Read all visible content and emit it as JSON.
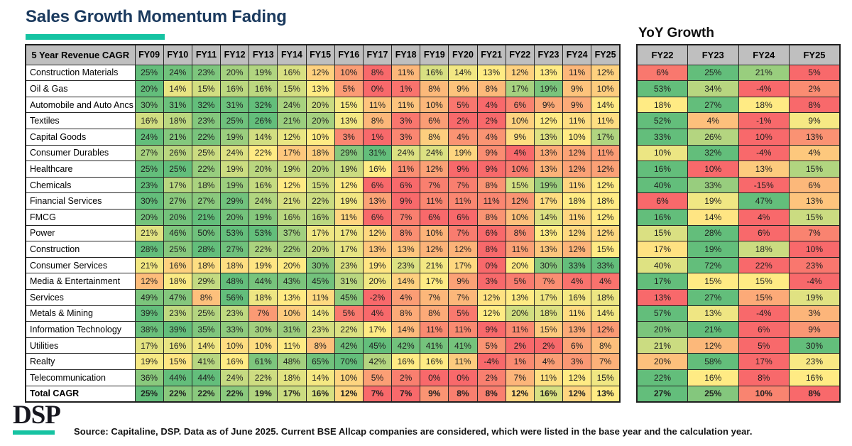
{
  "title": "Sales Growth Momentum Fading",
  "yoy_title": "YoY Growth",
  "colors": {
    "accent_teal": "#16c3a2",
    "title_navy": "#1b3a5e",
    "header_gray": "#bfbfbf",
    "scale_low_red": "#F8696B",
    "scale_mid_yellow": "#FFEB84",
    "scale_high_green": "#63BE7B"
  },
  "chart_data": {
    "type": "heatmap",
    "unit": "%",
    "corner_label": "5 Year Revenue CAGR",
    "cagr_columns": [
      "FY09",
      "FY10",
      "FY11",
      "FY12",
      "FY13",
      "FY14",
      "FY15",
      "FY16",
      "FY17",
      "FY18",
      "FY19",
      "FY20",
      "FY21",
      "FY22",
      "FY23",
      "FY24",
      "FY25"
    ],
    "yoy_columns": [
      "FY22",
      "FY23",
      "FY24",
      "FY25"
    ],
    "color_scale_rule": "per-row 3-color scale: min=red, median=yellow, max=green, applied separately to CAGR table and YoY table",
    "rows": [
      {
        "label": "Construction Materials",
        "cagr": [
          25,
          24,
          23,
          20,
          19,
          16,
          12,
          10,
          8,
          11,
          16,
          14,
          13,
          12,
          13,
          11,
          12
        ],
        "yoy": [
          6,
          25,
          21,
          5
        ],
        "bold": false
      },
      {
        "label": "Oil & Gas",
        "cagr": [
          20,
          14,
          15,
          16,
          16,
          15,
          13,
          5,
          0,
          1,
          8,
          9,
          8,
          17,
          19,
          9,
          10
        ],
        "yoy": [
          53,
          34,
          -4,
          2
        ],
        "bold": false
      },
      {
        "label": "Automobile and Auto Ancs",
        "cagr": [
          30,
          31,
          32,
          31,
          32,
          24,
          20,
          15,
          11,
          11,
          10,
          5,
          4,
          6,
          9,
          9,
          14
        ],
        "yoy": [
          18,
          27,
          18,
          8
        ],
        "bold": false
      },
      {
        "label": "Textiles",
        "cagr": [
          16,
          18,
          23,
          25,
          26,
          21,
          20,
          13,
          8,
          3,
          6,
          2,
          2,
          10,
          12,
          11,
          11
        ],
        "yoy": [
          52,
          4,
          -1,
          9
        ],
        "bold": false
      },
      {
        "label": "Capital Goods",
        "cagr": [
          24,
          21,
          22,
          19,
          14,
          12,
          10,
          3,
          1,
          3,
          8,
          4,
          4,
          9,
          13,
          10,
          17
        ],
        "yoy": [
          33,
          26,
          10,
          13
        ],
        "bold": false
      },
      {
        "label": "Consumer Durables",
        "cagr": [
          27,
          26,
          25,
          24,
          22,
          17,
          18,
          29,
          31,
          24,
          24,
          19,
          9,
          4,
          13,
          12,
          11
        ],
        "yoy": [
          10,
          32,
          -4,
          4
        ],
        "bold": false
      },
      {
        "label": "Healthcare",
        "cagr": [
          25,
          25,
          22,
          19,
          20,
          19,
          20,
          19,
          16,
          11,
          12,
          9,
          9,
          10,
          13,
          12,
          12
        ],
        "yoy": [
          16,
          10,
          13,
          15
        ],
        "bold": false
      },
      {
        "label": "Chemicals",
        "cagr": [
          23,
          17,
          18,
          19,
          16,
          12,
          15,
          12,
          6,
          6,
          7,
          7,
          8,
          15,
          19,
          11,
          12
        ],
        "yoy": [
          40,
          33,
          -15,
          6
        ],
        "bold": false
      },
      {
        "label": "Financial Services",
        "cagr": [
          30,
          27,
          27,
          29,
          24,
          21,
          22,
          19,
          13,
          9,
          11,
          11,
          11,
          12,
          17,
          18,
          18
        ],
        "yoy": [
          6,
          19,
          47,
          13
        ],
        "bold": false
      },
      {
        "label": "FMCG",
        "cagr": [
          20,
          20,
          21,
          20,
          19,
          16,
          16,
          11,
          6,
          7,
          6,
          6,
          8,
          10,
          14,
          11,
          12
        ],
        "yoy": [
          16,
          14,
          4,
          15
        ],
        "bold": false
      },
      {
        "label": "Power",
        "cagr": [
          21,
          46,
          50,
          53,
          53,
          37,
          17,
          17,
          12,
          8,
          10,
          7,
          6,
          8,
          13,
          12,
          12
        ],
        "yoy": [
          15,
          28,
          6,
          7
        ],
        "bold": false
      },
      {
        "label": "Construction",
        "cagr": [
          28,
          25,
          28,
          27,
          22,
          22,
          20,
          17,
          13,
          13,
          12,
          12,
          8,
          11,
          13,
          12,
          15
        ],
        "yoy": [
          17,
          19,
          18,
          10
        ],
        "bold": false
      },
      {
        "label": "Consumer Services",
        "cagr": [
          21,
          16,
          18,
          18,
          19,
          20,
          30,
          23,
          19,
          23,
          21,
          17,
          0,
          20,
          30,
          33,
          33
        ],
        "yoy": [
          40,
          72,
          22,
          23
        ],
        "bold": false
      },
      {
        "label": "Media & Entertainment",
        "cagr": [
          12,
          18,
          29,
          48,
          44,
          43,
          45,
          31,
          20,
          14,
          17,
          9,
          3,
          5,
          7,
          4,
          4
        ],
        "yoy": [
          17,
          15,
          15,
          -4
        ],
        "bold": false
      },
      {
        "label": "Services",
        "cagr": [
          49,
          47,
          8,
          56,
          18,
          13,
          11,
          45,
          -2,
          4,
          7,
          7,
          12,
          13,
          17,
          16,
          18
        ],
        "yoy": [
          13,
          27,
          15,
          19
        ],
        "bold": false
      },
      {
        "label": "Metals & Mining",
        "cagr": [
          39,
          23,
          25,
          23,
          7,
          10,
          14,
          5,
          4,
          8,
          8,
          5,
          12,
          20,
          18,
          11,
          14
        ],
        "yoy": [
          57,
          13,
          -4,
          3
        ],
        "bold": false
      },
      {
        "label": "Information Technology",
        "cagr": [
          38,
          39,
          35,
          33,
          30,
          31,
          23,
          22,
          17,
          14,
          11,
          11,
          9,
          11,
          15,
          13,
          12
        ],
        "yoy": [
          20,
          21,
          6,
          9
        ],
        "bold": false
      },
      {
        "label": "Utilities",
        "cagr": [
          17,
          16,
          14,
          10,
          10,
          11,
          8,
          42,
          45,
          42,
          41,
          41,
          5,
          2,
          2,
          6,
          8
        ],
        "yoy": [
          21,
          12,
          5,
          30
        ],
        "bold": false
      },
      {
        "label": "Realty",
        "cagr": [
          19,
          15,
          41,
          16,
          61,
          48,
          65,
          70,
          42,
          16,
          16,
          11,
          -4,
          1,
          4,
          3,
          7
        ],
        "yoy": [
          20,
          58,
          17,
          23
        ],
        "bold": false
      },
      {
        "label": "Telecommunication",
        "cagr": [
          36,
          44,
          44,
          24,
          22,
          18,
          14,
          10,
          5,
          2,
          0,
          0,
          2,
          7,
          11,
          12,
          15
        ],
        "yoy": [
          22,
          16,
          8,
          16
        ],
        "bold": false
      },
      {
        "label": "Total CAGR",
        "cagr": [
          25,
          22,
          22,
          22,
          19,
          17,
          16,
          12,
          7,
          7,
          9,
          8,
          8,
          12,
          16,
          12,
          13
        ],
        "yoy": [
          27,
          25,
          10,
          8
        ],
        "bold": true
      }
    ]
  },
  "footer": {
    "logo": "DSP",
    "source": "Source: Capitaline, DSP. Data as of June 2025. Current BSE Allcap companies are considered, which were listed in the base year and the calculation year."
  }
}
